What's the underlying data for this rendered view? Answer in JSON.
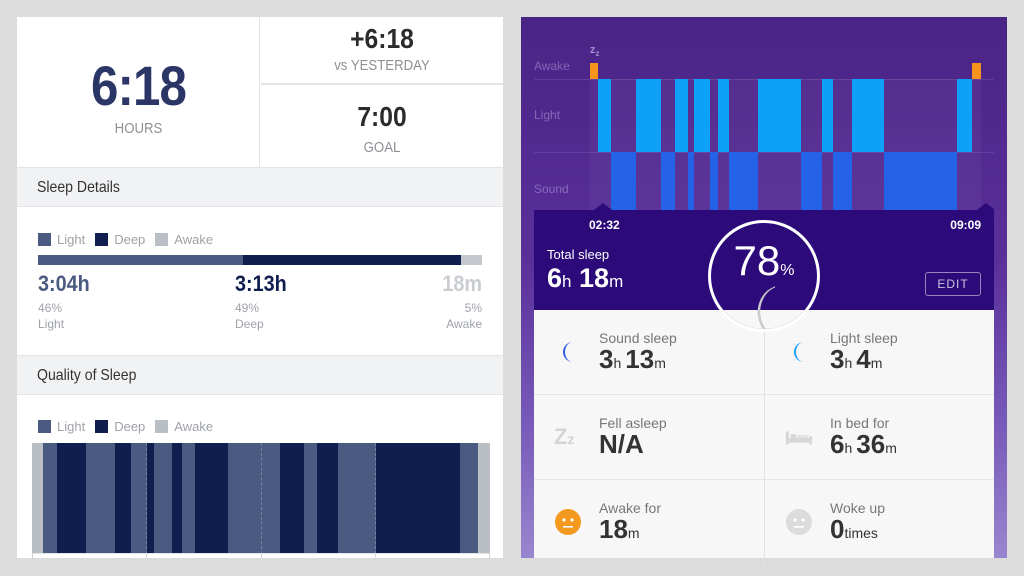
{
  "left_panel": {
    "total": {
      "value": "6:18",
      "label": "HOURS"
    },
    "vs_yesterday": {
      "value": "+6:18",
      "label": "vs YESTERDAY"
    },
    "goal": {
      "value": "7:00",
      "label": "GOAL"
    },
    "sleep_details": {
      "title": "Sleep Details",
      "legend": [
        {
          "label": "Light",
          "color": "#4a5a80"
        },
        {
          "label": "Deep",
          "color": "#0f1e4f"
        },
        {
          "label": "Awake",
          "color": "#babec5"
        }
      ],
      "stats": [
        {
          "value": "3:04h",
          "percent": "46%",
          "label": "Light",
          "color": "#4a5a80"
        },
        {
          "value": "3:13h",
          "percent": "49%",
          "label": "Deep",
          "color": "#0f1e4f"
        },
        {
          "value": "18m",
          "percent": "5%",
          "label": "Awake",
          "color": "#c9ccd1"
        }
      ]
    },
    "quality": {
      "title": "Quality of Sleep",
      "legend": [
        {
          "label": "Light",
          "color": "#4a5a80"
        },
        {
          "label": "Deep",
          "color": "#0f1e4f"
        },
        {
          "label": "Awake",
          "color": "#babec5"
        }
      ]
    }
  },
  "right_panel": {
    "hypnogram_labels": [
      "Awake",
      "Light",
      "Sound"
    ],
    "zz_icon": "Z",
    "start_time": "02:32",
    "end_time": "09:09",
    "total_sleep": {
      "label": "Total sleep",
      "hours": "6",
      "h_unit": "h",
      "minutes": "18",
      "m_unit": "m"
    },
    "score": {
      "value": "78",
      "unit": "%"
    },
    "edit_label": "EDIT",
    "cards": [
      {
        "label": "Sound sleep",
        "value1": "3",
        "unit1": "h",
        "value2": "13",
        "unit2": "m",
        "icon": "moon-icon",
        "icon_color": "#2a5de0"
      },
      {
        "label": "Light sleep",
        "value1": "3",
        "unit1": "h",
        "value2": "4",
        "unit2": "m",
        "icon": "moon-icon",
        "icon_color": "#1a9cf5"
      },
      {
        "label": "Fell asleep",
        "value1": "N/A",
        "icon": "zz-icon"
      },
      {
        "label": "In bed for",
        "value1": "6",
        "unit1": "h",
        "value2": "36",
        "unit2": "m",
        "icon": "bed-icon"
      },
      {
        "label": "Awake for",
        "value1": "18",
        "unit1": "m",
        "icon": "face-icon",
        "icon_color": "#f39a1e"
      },
      {
        "label": "Woke up",
        "value1": "0",
        "unit1": "times",
        "icon": "face-icon",
        "icon_color": "#d8d8d8"
      }
    ]
  },
  "chart_data": [
    {
      "type": "bar",
      "title": "Sleep Details",
      "orientation": "horizontal-stacked",
      "categories": [
        "Light",
        "Deep",
        "Awake"
      ],
      "values": [
        46,
        49,
        5
      ],
      "durations": [
        "3:04h",
        "3:13h",
        "18m"
      ],
      "colors": [
        "#4a5a80",
        "#0f1e4f",
        "#babec5"
      ]
    },
    {
      "type": "heatmap",
      "title": "Quality of Sleep",
      "legend": [
        "Light",
        "Deep",
        "Awake"
      ],
      "segments": [
        {
          "stage": "Awake",
          "start": 0,
          "end": 11
        },
        {
          "stage": "Light",
          "start": 11,
          "end": 25
        },
        {
          "stage": "Deep",
          "start": 25,
          "end": 54
        },
        {
          "stage": "Light",
          "start": 54,
          "end": 83
        },
        {
          "stage": "Deep",
          "start": 83,
          "end": 99
        },
        {
          "stage": "Light",
          "start": 99,
          "end": 115
        },
        {
          "stage": "Deep",
          "start": 115,
          "end": 122
        },
        {
          "stage": "Light",
          "start": 122,
          "end": 140
        },
        {
          "stage": "Deep",
          "start": 140,
          "end": 150
        },
        {
          "stage": "Light",
          "start": 150,
          "end": 163
        },
        {
          "stage": "Deep",
          "start": 163,
          "end": 196
        },
        {
          "stage": "Light",
          "start": 196,
          "end": 248
        },
        {
          "stage": "Deep",
          "start": 248,
          "end": 272
        },
        {
          "stage": "Light",
          "start": 272,
          "end": 285
        },
        {
          "stage": "Deep",
          "start": 285,
          "end": 306
        },
        {
          "stage": "Light",
          "start": 306,
          "end": 344
        },
        {
          "stage": "Deep",
          "start": 344,
          "end": 428
        },
        {
          "stage": "Light",
          "start": 428,
          "end": 446
        },
        {
          "stage": "Awake",
          "start": 446,
          "end": 458
        }
      ],
      "x_units": "px (chart width 458)",
      "grid_lines_x": [
        114,
        229,
        343
      ]
    },
    {
      "type": "bar",
      "title": "Hypnogram",
      "levels": [
        "Awake",
        "Light",
        "Sound"
      ],
      "x_start": "02:32",
      "x_end": "09:09",
      "segments": [
        {
          "stage": "Awake",
          "start": 0,
          "end": 8
        },
        {
          "stage": "Light",
          "start": 8,
          "end": 21
        },
        {
          "stage": "Sound",
          "start": 21,
          "end": 46
        },
        {
          "stage": "Light",
          "start": 46,
          "end": 71
        },
        {
          "stage": "Sound",
          "start": 71,
          "end": 85
        },
        {
          "stage": "Light",
          "start": 85,
          "end": 98
        },
        {
          "stage": "Sound",
          "start": 98,
          "end": 104
        },
        {
          "stage": "Light",
          "start": 104,
          "end": 120
        },
        {
          "stage": "Sound",
          "start": 120,
          "end": 128
        },
        {
          "stage": "Light",
          "start": 128,
          "end": 139
        },
        {
          "stage": "Sound",
          "start": 139,
          "end": 168
        },
        {
          "stage": "Light",
          "start": 168,
          "end": 211
        },
        {
          "stage": "Sound",
          "start": 211,
          "end": 232
        },
        {
          "stage": "Light",
          "start": 232,
          "end": 243
        },
        {
          "stage": "Sound",
          "start": 243,
          "end": 262
        },
        {
          "stage": "Light",
          "start": 262,
          "end": 294
        },
        {
          "stage": "Sound",
          "start": 294,
          "end": 367
        },
        {
          "stage": "Light",
          "start": 367,
          "end": 382
        },
        {
          "stage": "Awake",
          "start": 382,
          "end": 391
        }
      ],
      "x_units": "px (chart width 391)",
      "colors": {
        "Awake": "#f7941d",
        "Light": "#0fa0f8",
        "Sound": "#2463e8"
      }
    }
  ]
}
